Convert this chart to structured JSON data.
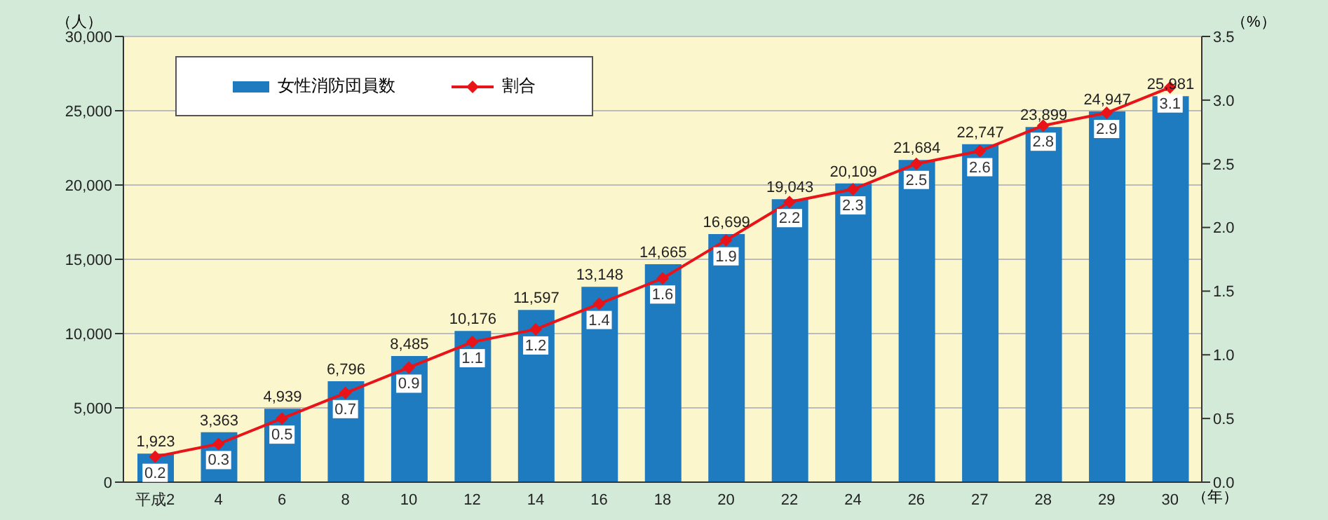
{
  "chart_data": {
    "type": "bar",
    "categories": [
      "平成2",
      "4",
      "6",
      "8",
      "10",
      "12",
      "14",
      "16",
      "18",
      "20",
      "22",
      "24",
      "26",
      "27",
      "28",
      "29",
      "30"
    ],
    "series": [
      {
        "name": "女性消防団員数",
        "color": "#1f7bbf",
        "values": [
          1923,
          3363,
          4939,
          6796,
          8485,
          10176,
          11597,
          13148,
          14665,
          16699,
          19043,
          20109,
          21684,
          22747,
          23899,
          24947,
          25981
        ],
        "value_labels": [
          "1,923",
          "3,363",
          "4,939",
          "6,796",
          "8,485",
          "10,176",
          "11,597",
          "13,148",
          "14,665",
          "16,699",
          "19,043",
          "20,109",
          "21,684",
          "22,747",
          "23,899",
          "24,947",
          "25,981"
        ]
      },
      {
        "name": "割合",
        "type": "line",
        "axis": "y2",
        "color": "#e8141a",
        "values": [
          0.2,
          0.3,
          0.5,
          0.7,
          0.9,
          1.1,
          1.2,
          1.4,
          1.6,
          1.9,
          2.2,
          2.3,
          2.5,
          2.6,
          2.8,
          2.9,
          3.1
        ],
        "value_labels": [
          "0.2",
          "0.3",
          "0.5",
          "0.7",
          "0.9",
          "1.1",
          "1.2",
          "1.4",
          "1.6",
          "1.9",
          "2.2",
          "2.3",
          "2.5",
          "2.6",
          "2.8",
          "2.9",
          "3.1"
        ]
      }
    ],
    "ylabel": "（人）",
    "y2label": "（%）",
    "xlabel": "（年）",
    "ylim": [
      0,
      30000
    ],
    "yticks": [
      {
        "value": 0,
        "label": "0"
      },
      {
        "value": 5000,
        "label": "5,000"
      },
      {
        "value": 10000,
        "label": "10,000"
      },
      {
        "value": 15000,
        "label": "15,000"
      },
      {
        "value": 20000,
        "label": "20,000"
      },
      {
        "value": 25000,
        "label": "25,000"
      },
      {
        "value": 30000,
        "label": "30,000"
      }
    ],
    "y2lim": [
      0,
      3.5
    ],
    "y2ticks": [
      {
        "value": 0,
        "label": "0.0"
      },
      {
        "value": 0.5,
        "label": "0.5"
      },
      {
        "value": 1,
        "label": "1.0"
      },
      {
        "value": 1.5,
        "label": "1.5"
      },
      {
        "value": 2,
        "label": "2.0"
      },
      {
        "value": 2.5,
        "label": "2.5"
      },
      {
        "value": 3,
        "label": "3.0"
      },
      {
        "value": 3.5,
        "label": "3.5"
      }
    ],
    "grid": "y",
    "legend": "top left",
    "marker": "diamond",
    "line_style": "solid"
  }
}
